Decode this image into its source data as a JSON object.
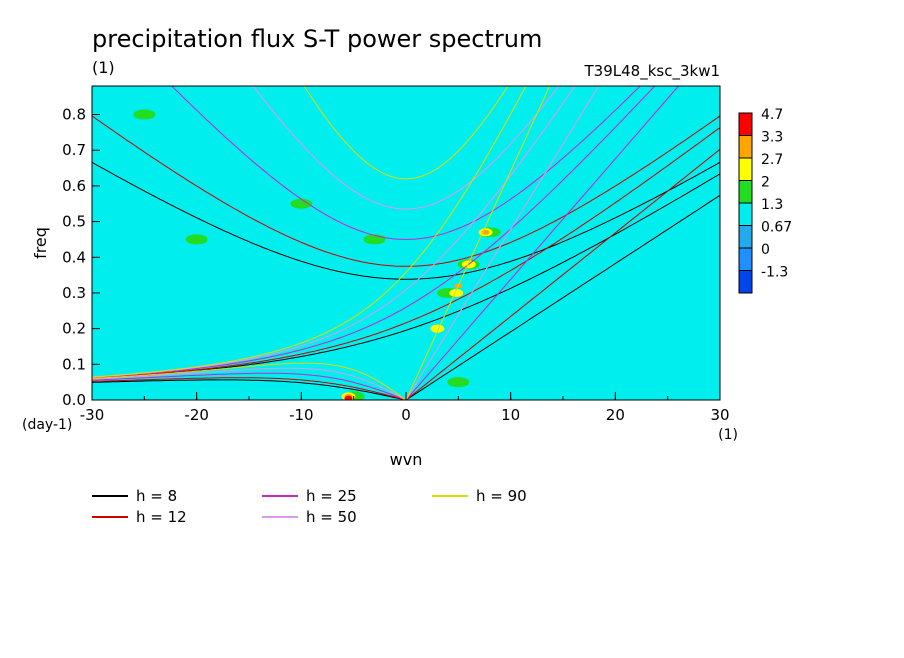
{
  "chart_data": {
    "type": "heatmap",
    "title": "precipitation flux S-T power spectrum",
    "subtitle_left": "(1)",
    "subtitle_right": "T39L48_ksc_3kw1",
    "xlabel": "wvn",
    "ylabel": "freq",
    "x_unit": "(1)",
    "y_unit": "(day-1)",
    "xlim": [
      -30,
      30
    ],
    "ylim": [
      0,
      0.88
    ],
    "xticks": [
      -30,
      -20,
      -10,
      0,
      10,
      20,
      30
    ],
    "yticks": [
      0.0,
      0.1,
      0.2,
      0.3,
      0.4,
      0.5,
      0.6,
      0.7,
      0.8
    ],
    "grid": false,
    "colorbar": {
      "levels": [
        "4.7",
        "3.3",
        "2.7",
        "2",
        "1.3",
        "0.67",
        "0",
        "-1.3"
      ],
      "colors": [
        "#ff0000",
        "#ffa500",
        "#ffff00",
        "#22dd22",
        "#00eeee",
        "#22aaee",
        "#1e90ff",
        "#0044ee"
      ]
    },
    "background_level_color": "#00eeee",
    "blobs": [
      {
        "level": 2,
        "points": [
          [
            -5,
            0.01
          ],
          [
            5,
            0.05
          ],
          [
            8,
            0.47
          ],
          [
            6,
            0.38
          ],
          [
            4,
            0.3
          ],
          [
            -10,
            0.55
          ],
          [
            -3,
            0.45
          ],
          [
            -20,
            0.45
          ],
          [
            -25,
            0.8
          ]
        ]
      },
      {
        "level": 3,
        "points": [
          [
            6,
            0.38
          ],
          [
            4.8,
            0.3
          ],
          [
            3,
            0.2
          ],
          [
            7.6,
            0.47
          ],
          [
            -5.5,
            0.01
          ]
        ]
      },
      {
        "level": 4,
        "points": [
          [
            7.6,
            0.47
          ],
          [
            5,
            0.32
          ],
          [
            -5.5,
            0.01
          ]
        ]
      },
      {
        "level": 5,
        "points": [
          [
            -5.5,
            0.005
          ]
        ]
      }
    ],
    "dispersion_curves": [
      {
        "name": "h =  8",
        "color": "#000000",
        "h": 8
      },
      {
        "name": "h = 12",
        "color": "#cc0000",
        "h": 12
      },
      {
        "name": "h = 25",
        "color": "#cc22cc",
        "h": 25
      },
      {
        "name": "h = 50",
        "color": "#dd99ee",
        "h": 50
      },
      {
        "name": "h = 90",
        "color": "#dddd00",
        "h": 90
      }
    ]
  }
}
